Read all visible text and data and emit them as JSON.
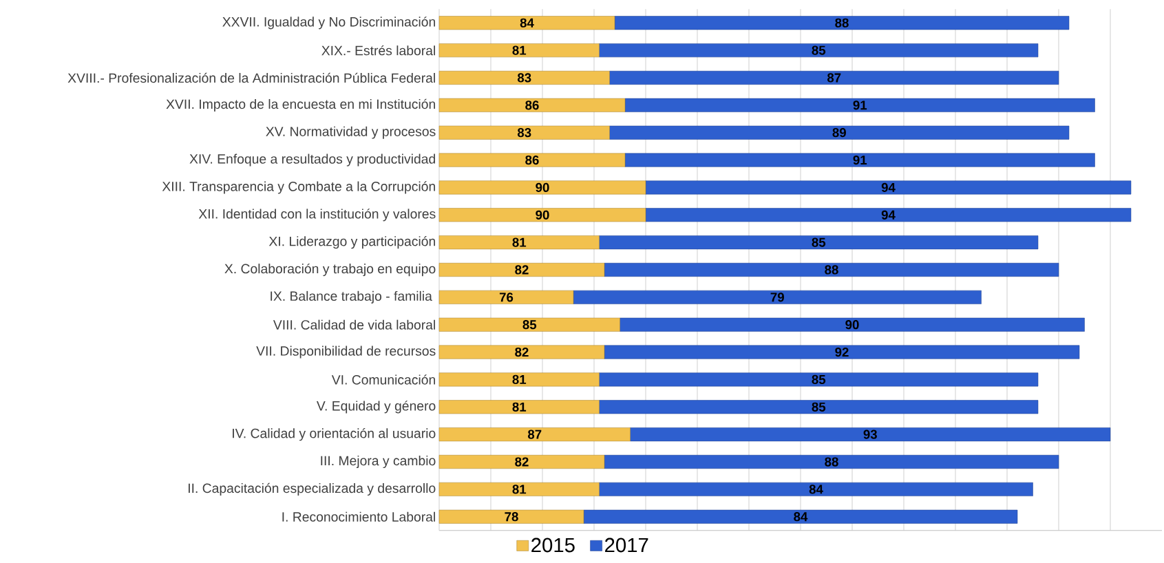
{
  "chart_data": {
    "type": "bar",
    "orientation": "horizontal",
    "stacked": true,
    "data_labels": true,
    "categories": [
      "XXVII. Igualdad y No Discriminación",
      "XIX.- Estrés laboral",
      "XVIII.- Profesionalización de la Administración Pública Federal",
      "XVII. Impacto de la encuesta en mi Institución",
      "XV. Normatividad y procesos",
      "XIV. Enfoque a resultados y productividad",
      "XIII. Transparencia y Combate a la Corrupción",
      "XII. Identidad con la institución y valores",
      "XI. Liderazgo y participación",
      "X. Colaboración y trabajo en equipo",
      "IX. Balance trabajo - familia ",
      "VIII. Calidad de vida laboral",
      "VII. Disponibilidad de recursos",
      "VI. Comunicación",
      "V. Equidad y género",
      "IV. Calidad y orientación al usuario",
      "III. Mejora y cambio",
      "II. Capacitación especializada y desarrollo",
      "I. Reconocimiento Laboral"
    ],
    "series": [
      {
        "name": "2015",
        "color": "#f2c14e",
        "values": [
          84,
          81,
          83,
          86,
          83,
          86,
          90,
          90,
          81,
          82,
          76,
          85,
          82,
          81,
          81,
          87,
          82,
          81,
          78
        ]
      },
      {
        "name": "2017",
        "color": "#2e5fcf",
        "values": [
          88,
          85,
          87,
          91,
          89,
          91,
          94,
          94,
          85,
          88,
          79,
          90,
          92,
          85,
          85,
          93,
          88,
          84,
          84
        ]
      }
    ],
    "xlim": [
      50,
      190
    ],
    "xticks": [
      {
        "value": 50,
        "label": null
      },
      {
        "value": 60,
        "label": null
      },
      {
        "value": 70,
        "label": null
      },
      {
        "value": 80,
        "label": null
      },
      {
        "value": 90,
        "label": null
      },
      {
        "value": 100,
        "label": null
      },
      {
        "value": 110,
        "label": null
      },
      {
        "value": 120,
        "label": null
      },
      {
        "value": 130,
        "label": null
      },
      {
        "value": 140,
        "label": null
      },
      {
        "value": 150,
        "label": null
      },
      {
        "value": 160,
        "label": null
      },
      {
        "value": 170,
        "label": null
      },
      {
        "value": 180,
        "label": null
      }
    ],
    "grid": "x",
    "tick_labels": "y",
    "legend": "bottom"
  }
}
